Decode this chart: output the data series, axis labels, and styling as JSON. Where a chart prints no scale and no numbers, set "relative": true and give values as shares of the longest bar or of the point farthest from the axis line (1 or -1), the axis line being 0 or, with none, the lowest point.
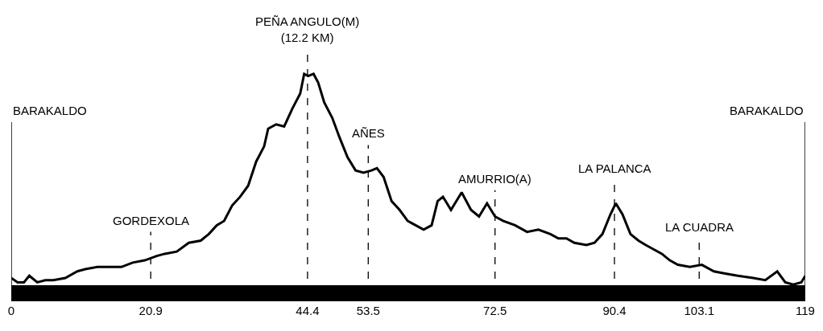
{
  "chart_data": {
    "type": "line",
    "relative": true,
    "x": [
      0,
      0.95,
      1.9,
      2.7,
      3.9,
      5.1,
      6.3,
      8.1,
      9.9,
      11.1,
      12.9,
      14.7,
      16.5,
      18.2,
      20.0,
      21.8,
      23.0,
      24.8,
      26.6,
      28.4,
      29.6,
      30.8,
      31.9,
      33.1,
      34.3,
      35.5,
      36.7,
      37.9,
      38.5,
      39.7,
      40.9,
      42.1,
      43.3,
      43.9,
      44.5,
      45.3,
      46.0,
      46.9,
      48.1,
      49.2,
      50.4,
      51.6,
      52.8,
      54.0,
      54.8,
      55.8,
      57.0,
      58.2,
      59.4,
      60.6,
      61.8,
      63.0,
      63.9,
      64.7,
      65.9,
      67.5,
      68.9,
      70.1,
      71.3,
      72.5,
      73.7,
      75.5,
      77.3,
      79.0,
      80.8,
      82.0,
      83.2,
      84.4,
      86.2,
      87.4,
      88.6,
      89.8,
      90.6,
      91.6,
      92.8,
      94.0,
      95.1,
      96.3,
      97.5,
      98.7,
      99.9,
      101.7,
      103.5,
      105.3,
      107.0,
      108.9,
      111.2,
      113.0,
      114.8,
      116.0,
      117.2,
      118.4,
      119
    ],
    "series": [
      {
        "color": "#000000",
        "values": [
          0.07,
          0.05,
          0.05,
          0.08,
          0.05,
          0.06,
          0.06,
          0.07,
          0.1,
          0.11,
          0.12,
          0.12,
          0.12,
          0.14,
          0.15,
          0.17,
          0.18,
          0.19,
          0.23,
          0.24,
          0.27,
          0.31,
          0.33,
          0.4,
          0.44,
          0.49,
          0.6,
          0.67,
          0.75,
          0.77,
          0.76,
          0.84,
          0.91,
          1.0,
          0.99,
          1.0,
          0.96,
          0.87,
          0.8,
          0.71,
          0.62,
          0.56,
          0.55,
          0.56,
          0.57,
          0.53,
          0.42,
          0.38,
          0.33,
          0.31,
          0.29,
          0.31,
          0.42,
          0.44,
          0.38,
          0.46,
          0.38,
          0.35,
          0.41,
          0.35,
          0.33,
          0.31,
          0.28,
          0.29,
          0.27,
          0.25,
          0.25,
          0.23,
          0.22,
          0.23,
          0.27,
          0.36,
          0.41,
          0.36,
          0.27,
          0.24,
          0.22,
          0.2,
          0.18,
          0.15,
          0.13,
          0.12,
          0.13,
          0.1,
          0.09,
          0.08,
          0.07,
          0.06,
          0.1,
          0.05,
          0.04,
          0.05,
          0.08
        ]
      }
    ],
    "xlim": [
      0,
      119
    ],
    "xticks": [
      0,
      20.9,
      44.4,
      53.5,
      72.5,
      90.4,
      103.1,
      119
    ],
    "tick_labels": "x",
    "marker": "none",
    "line_style": "solid",
    "ref_lines": [
      {
        "axis": "x",
        "value": 0,
        "label": "BARAKALDO",
        "line_style": "solid",
        "color": "#000000"
      },
      {
        "axis": "x",
        "value": 20.9,
        "label": "GORDEXOLA",
        "line_style": "dashed",
        "color": "#000000"
      },
      {
        "axis": "x",
        "value": 44.4,
        "label": "PEÑA ANGULO(M)\n(12.2 KM)",
        "line_style": "dashed",
        "color": "#000000"
      },
      {
        "axis": "x",
        "value": 53.5,
        "label": "AÑES",
        "line_style": "dashed",
        "color": "#000000"
      },
      {
        "axis": "x",
        "value": 72.5,
        "label": "AMURRIO(A)",
        "line_style": "dashed",
        "color": "#000000"
      },
      {
        "axis": "x",
        "value": 90.4,
        "label": "LA PALANCA",
        "line_style": "dashed",
        "color": "#000000"
      },
      {
        "axis": "x",
        "value": 103.1,
        "label": "LA CUADRA",
        "line_style": "dashed",
        "color": "#000000"
      },
      {
        "axis": "x",
        "value": 119,
        "label": "BARAKALDO",
        "line_style": "solid",
        "color": "#000000"
      }
    ]
  }
}
